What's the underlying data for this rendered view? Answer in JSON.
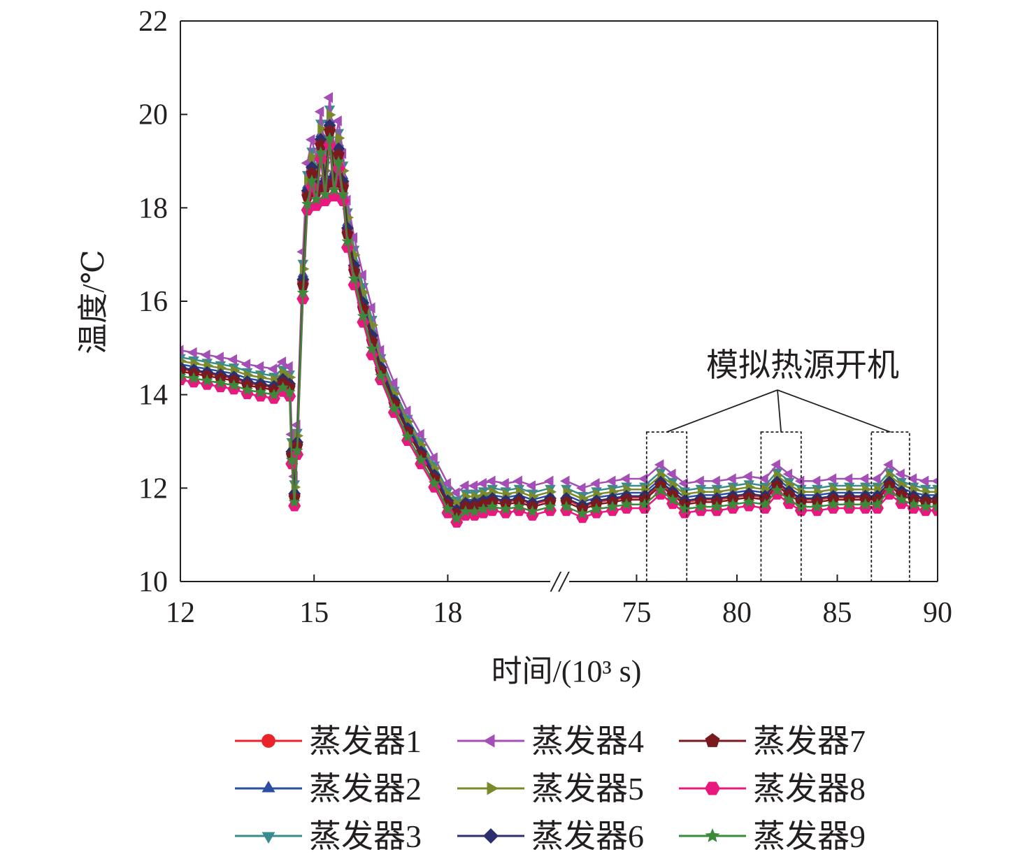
{
  "chart_data": {
    "type": "line",
    "xlabel": "时间/(10³ s)",
    "ylabel": "温度/℃",
    "ylim": [
      10,
      22
    ],
    "yticks": [
      "10",
      "12",
      "14",
      "16",
      "18",
      "20",
      "22"
    ],
    "xticks": [
      "12",
      "15",
      "18",
      "75",
      "80",
      "85",
      "90"
    ],
    "x_segments": [
      {
        "range": [
          12,
          20.3
        ],
        "ticks": [
          12,
          15,
          18
        ]
      },
      {
        "range": [
          71.5,
          90
        ],
        "ticks": [
          75,
          80,
          85,
          90
        ]
      }
    ],
    "axis_break": "//",
    "grid": false,
    "legend": "bottom",
    "annotation": {
      "text": "模拟热源开机",
      "boxes": [
        [
          75.5,
          77.5
        ],
        [
          81.2,
          83.2
        ],
        [
          86.7,
          88.6
        ]
      ],
      "y_range": [
        10,
        13.2
      ]
    },
    "series": [
      {
        "name": "蒸发器1",
        "color": "#e8232a",
        "marker": "circle",
        "offset": -0.05
      },
      {
        "name": "蒸发器2",
        "color": "#2b4ea2",
        "marker": "triangle-up",
        "offset": 0.05
      },
      {
        "name": "蒸发器3",
        "color": "#3a8c8c",
        "marker": "triangle-down",
        "offset": 0.2
      },
      {
        "name": "蒸发器4",
        "color": "#a44fb5",
        "marker": "triangle-left",
        "offset": 0.35
      },
      {
        "name": "蒸发器5",
        "color": "#7a8a2a",
        "marker": "triangle-right",
        "offset": 0.12
      },
      {
        "name": "蒸发器6",
        "color": "#2b2f6b",
        "marker": "diamond",
        "offset": -0.02
      },
      {
        "name": "蒸发器7",
        "color": "#7a1a1f",
        "marker": "pentagon",
        "offset": -0.1
      },
      {
        "name": "蒸发器8",
        "color": "#e8187f",
        "marker": "hexagon",
        "offset": -0.28
      },
      {
        "name": "蒸发器9",
        "color": "#3a8a3a",
        "marker": "star",
        "offset": -0.2
      }
    ],
    "base_curve": [
      [
        12.0,
        14.6
      ],
      [
        12.3,
        14.55
      ],
      [
        12.6,
        14.5
      ],
      [
        12.9,
        14.45
      ],
      [
        13.2,
        14.4
      ],
      [
        13.5,
        14.3
      ],
      [
        13.8,
        14.25
      ],
      [
        14.1,
        14.2
      ],
      [
        14.3,
        14.35
      ],
      [
        14.45,
        14.25
      ],
      [
        14.5,
        12.8
      ],
      [
        14.56,
        11.9
      ],
      [
        14.62,
        13.0
      ],
      [
        14.75,
        16.5
      ],
      [
        14.85,
        18.4
      ],
      [
        14.95,
        18.9
      ],
      [
        15.05,
        18.5
      ],
      [
        15.15,
        19.5
      ],
      [
        15.25,
        18.6
      ],
      [
        15.35,
        19.8
      ],
      [
        15.45,
        18.7
      ],
      [
        15.55,
        19.3
      ],
      [
        15.65,
        18.6
      ],
      [
        15.75,
        17.6
      ],
      [
        15.9,
        16.8
      ],
      [
        16.1,
        16.0
      ],
      [
        16.3,
        15.3
      ],
      [
        16.5,
        14.6
      ],
      [
        16.8,
        13.9
      ],
      [
        17.1,
        13.3
      ],
      [
        17.4,
        12.8
      ],
      [
        17.7,
        12.3
      ],
      [
        18.0,
        11.75
      ],
      [
        18.2,
        11.55
      ],
      [
        18.4,
        11.7
      ],
      [
        18.6,
        11.7
      ],
      [
        18.8,
        11.75
      ],
      [
        19.0,
        11.8
      ],
      [
        19.3,
        11.75
      ],
      [
        19.6,
        11.8
      ],
      [
        19.9,
        11.7
      ],
      [
        20.3,
        11.8
      ],
      [
        71.5,
        11.8
      ],
      [
        72.3,
        11.65
      ],
      [
        73.0,
        11.75
      ],
      [
        73.8,
        11.8
      ],
      [
        74.5,
        11.85
      ],
      [
        75.4,
        11.85
      ],
      [
        76.2,
        12.15
      ],
      [
        76.8,
        11.95
      ],
      [
        77.4,
        11.75
      ],
      [
        78.2,
        11.8
      ],
      [
        79.0,
        11.8
      ],
      [
        79.8,
        11.85
      ],
      [
        80.6,
        11.9
      ],
      [
        81.4,
        11.85
      ],
      [
        82.0,
        12.15
      ],
      [
        82.6,
        11.95
      ],
      [
        83.2,
        11.8
      ],
      [
        84.0,
        11.8
      ],
      [
        84.8,
        11.85
      ],
      [
        85.6,
        11.85
      ],
      [
        86.4,
        11.85
      ],
      [
        87.0,
        11.85
      ],
      [
        87.6,
        12.15
      ],
      [
        88.2,
        11.95
      ],
      [
        88.8,
        11.85
      ],
      [
        89.4,
        11.8
      ],
      [
        90.0,
        11.8
      ]
    ]
  },
  "labels": {
    "title": "",
    "xlabel": "时间/(10³ s)",
    "ylabel": "温度/℃",
    "annotation": "模拟热源开机",
    "break_mark": "//"
  }
}
